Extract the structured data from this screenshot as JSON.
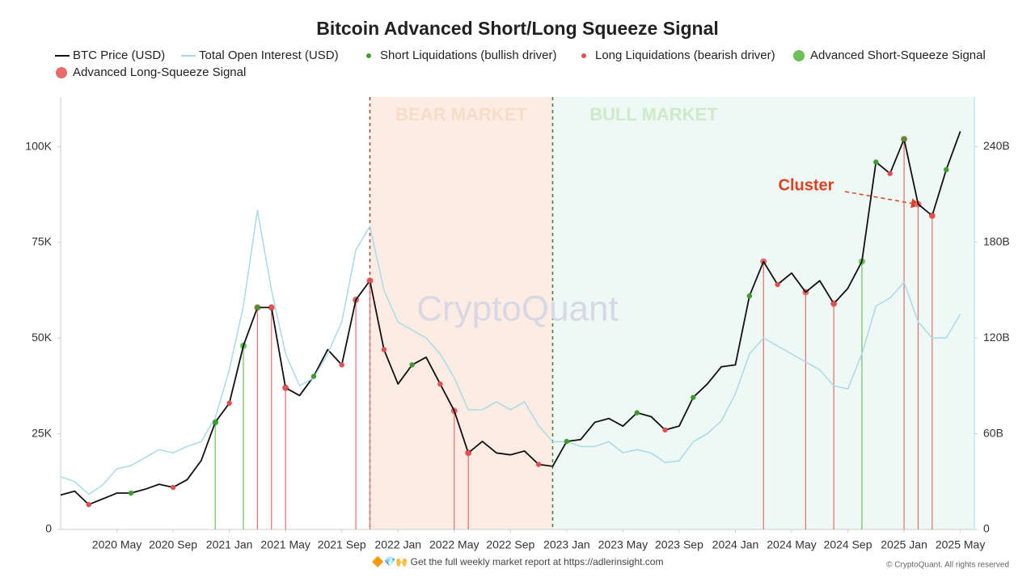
{
  "chart_data": {
    "type": "line",
    "title": "Bitcoin Advanced Short/Long Squeeze Signal",
    "x": [
      "2020-01",
      "2020-02",
      "2020-03",
      "2020-04",
      "2020-05",
      "2020-06",
      "2020-07",
      "2020-08",
      "2020-09",
      "2020-10",
      "2020-11",
      "2020-12",
      "2021-01",
      "2021-02",
      "2021-03",
      "2021-04",
      "2021-05",
      "2021-06",
      "2021-07",
      "2021-08",
      "2021-09",
      "2021-10",
      "2021-11",
      "2021-12",
      "2022-01",
      "2022-02",
      "2022-03",
      "2022-04",
      "2022-05",
      "2022-06",
      "2022-07",
      "2022-08",
      "2022-09",
      "2022-10",
      "2022-11",
      "2022-12",
      "2023-01",
      "2023-02",
      "2023-03",
      "2023-04",
      "2023-05",
      "2023-06",
      "2023-07",
      "2023-08",
      "2023-09",
      "2023-10",
      "2023-11",
      "2023-12",
      "2024-01",
      "2024-02",
      "2024-03",
      "2024-04",
      "2024-05",
      "2024-06",
      "2024-07",
      "2024-08",
      "2024-09",
      "2024-10",
      "2024-11",
      "2024-12",
      "2025-01",
      "2025-02",
      "2025-03",
      "2025-04",
      "2025-05"
    ],
    "xlim": [
      "2020-01",
      "2025-06"
    ],
    "xticks": [
      {
        "value": "2020-05",
        "label": "2020 May"
      },
      {
        "value": "2020-09",
        "label": "2020 Sep"
      },
      {
        "value": "2021-01",
        "label": "2021 Jan"
      },
      {
        "value": "2021-05",
        "label": "2021 May"
      },
      {
        "value": "2021-09",
        "label": "2021 Sep"
      },
      {
        "value": "2022-01",
        "label": "2022 Jan"
      },
      {
        "value": "2022-05",
        "label": "2022 May"
      },
      {
        "value": "2022-09",
        "label": "2022 Sep"
      },
      {
        "value": "2023-01",
        "label": "2023 Jan"
      },
      {
        "value": "2023-05",
        "label": "2023 May"
      },
      {
        "value": "2023-09",
        "label": "2023 Sep"
      },
      {
        "value": "2024-01",
        "label": "2024 Jan"
      },
      {
        "value": "2024-05",
        "label": "2024 May"
      },
      {
        "value": "2024-09",
        "label": "2024 Sep"
      },
      {
        "value": "2025-01",
        "label": "2025 Jan"
      },
      {
        "value": "2025-05",
        "label": "2025 May"
      }
    ],
    "ylim": [
      0,
      113000
    ],
    "yticks": [
      0,
      {
        "value": 25000,
        "label": "25K"
      },
      {
        "value": 50000,
        "label": "50K"
      },
      {
        "value": 75000,
        "label": "75K"
      },
      {
        "value": 100000,
        "label": "100K"
      }
    ],
    "y2lim": [
      0,
      271
    ],
    "y2ticks": [
      0,
      {
        "value": 60,
        "label": "60B"
      },
      {
        "value": 120,
        "label": "120B"
      },
      {
        "value": 180,
        "label": "180B"
      },
      {
        "value": 240,
        "label": "240B"
      }
    ],
    "series": [
      {
        "name": "BTC Price (USD)",
        "kind": "line",
        "color": "#111111",
        "values": [
          9000,
          10000,
          6500,
          8000,
          9500,
          9500,
          10500,
          11800,
          11000,
          13000,
          18000,
          28000,
          33000,
          48000,
          58000,
          58000,
          37000,
          35000,
          40000,
          47000,
          43000,
          60000,
          65000,
          47000,
          38000,
          43000,
          45000,
          38000,
          31000,
          20000,
          23000,
          20000,
          19500,
          20500,
          17000,
          16500,
          23000,
          23500,
          28000,
          29000,
          27000,
          30500,
          29500,
          26000,
          27000,
          34500,
          38000,
          42500,
          43000,
          61000,
          70000,
          64000,
          67000,
          62000,
          65000,
          59000,
          63000,
          70000,
          96000,
          93000,
          102000,
          85000,
          82000,
          94000,
          104000
        ]
      },
      {
        "name": "Total Open Interest (USD)",
        "kind": "line",
        "axis": "y2",
        "color": "#a8dbe6",
        "values": [
          33,
          30,
          22,
          28,
          38,
          40,
          45,
          50,
          48,
          52,
          55,
          70,
          100,
          140,
          200,
          150,
          110,
          90,
          95,
          110,
          130,
          175,
          190,
          150,
          130,
          125,
          120,
          110,
          95,
          75,
          75,
          80,
          75,
          80,
          65,
          55,
          55,
          52,
          52,
          55,
          48,
          50,
          48,
          42,
          43,
          55,
          60,
          68,
          85,
          110,
          120,
          115,
          110,
          105,
          100,
          90,
          88,
          110,
          140,
          145,
          155,
          130,
          120,
          120,
          135
        ]
      },
      {
        "name": "Short Liquidations (bullish driver)",
        "kind": "dots",
        "color": "#3e9c2e",
        "x": [
          "2020-06",
          "2020-12",
          "2021-03",
          "2021-07",
          "2022-02",
          "2023-01",
          "2023-06",
          "2023-10",
          "2024-02",
          "2024-11",
          "2025-01",
          "2025-04"
        ],
        "values": [
          9500,
          28000,
          58000,
          40000,
          43000,
          23000,
          30500,
          34500,
          61000,
          96000,
          102000,
          94000
        ]
      },
      {
        "name": "Long Liquidations (bearish driver)",
        "kind": "dots",
        "color": "#e05050",
        "x": [
          "2020-03",
          "2020-09",
          "2021-01",
          "2021-04",
          "2021-05",
          "2021-09",
          "2021-11",
          "2021-12",
          "2022-04",
          "2022-06",
          "2022-11",
          "2023-08",
          "2024-04",
          "2024-08",
          "2024-12",
          "2025-03"
        ],
        "values": [
          6500,
          11000,
          33000,
          58000,
          37000,
          43000,
          65000,
          47000,
          38000,
          20000,
          17000,
          26000,
          64000,
          59000,
          93000,
          82000
        ]
      },
      {
        "name": "Advanced Short-Squeeze Signal",
        "kind": "signal",
        "color": "#6cc05a",
        "x": [
          "2020-12",
          "2021-02",
          "2024-10"
        ],
        "values": [
          28000,
          48000,
          70000
        ]
      },
      {
        "name": "Advanced Long-Squeeze Signal",
        "kind": "signal",
        "color": "#e86a6a",
        "x": [
          "2021-03",
          "2021-04",
          "2021-05",
          "2021-10",
          "2021-11",
          "2022-05",
          "2022-06",
          "2024-03",
          "2024-06",
          "2024-08",
          "2025-01",
          "2025-02",
          "2025-03"
        ],
        "values": [
          58000,
          58000,
          37000,
          60000,
          65000,
          31000,
          20000,
          70000,
          62000,
          59000,
          102000,
          85000,
          82000
        ]
      }
    ],
    "regions": [
      {
        "label": "BEAR MARKET",
        "start": "2021-11",
        "end": "2022-12",
        "color": "#fdece3",
        "line": "#c0392b",
        "text_color": "#f7dcc7"
      },
      {
        "label": "BULL MARKET",
        "start": "2022-12",
        "end": "2025-06",
        "color": "#eef8f5",
        "line": "#3a7d2c",
        "text_color": "#cdebc8"
      }
    ],
    "annotation": "Cluster",
    "watermark": "CryptoQuant",
    "footer": "🔶💎🙌 Get the full weekly market report at https://adlerinsight.com",
    "copyright": "© CryptoQuant. All rights reserved"
  }
}
